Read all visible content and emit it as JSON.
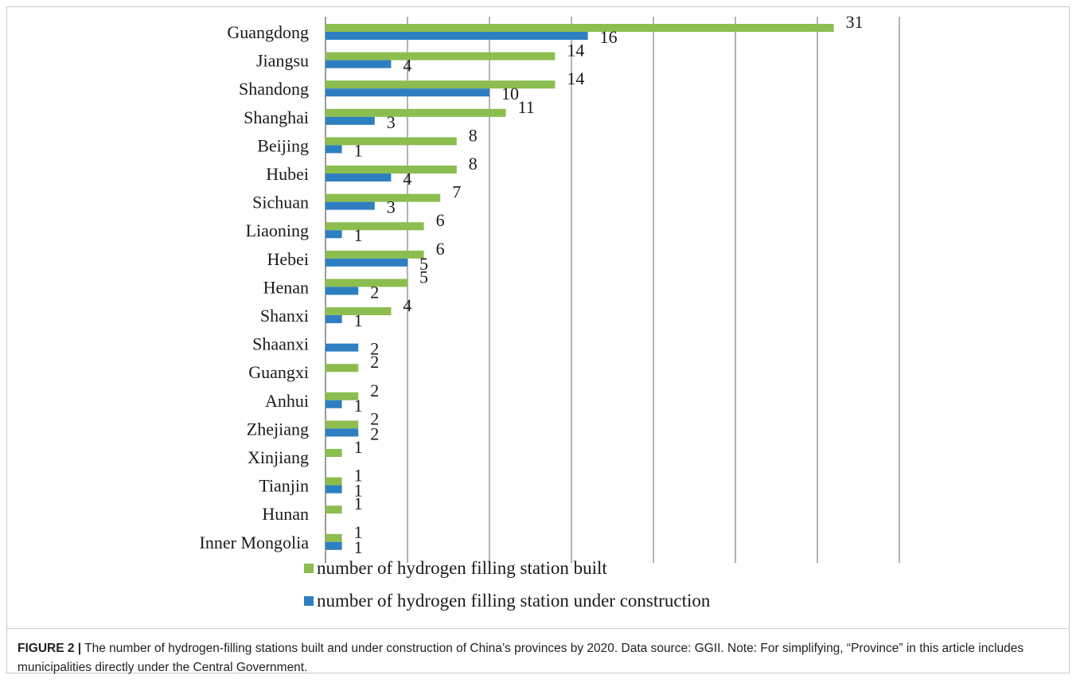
{
  "chart_data": {
    "type": "bar",
    "orientation": "horizontal",
    "categories": [
      "Guangdong",
      "Jiangsu",
      "Shandong",
      "Shanghai",
      "Beijing",
      "Hubei",
      "Sichuan",
      "Liaoning",
      "Hebei",
      "Henan",
      "Shanxi",
      "Shaanxi",
      "Guangxi",
      "Anhui",
      "Zhejiang",
      "Xinjiang",
      "Tianjin",
      "Hunan",
      "Inner Mongolia"
    ],
    "series": [
      {
        "name": "number of  hydrogen filling station built",
        "color": "#8cbd4f",
        "values": [
          31,
          14,
          14,
          11,
          8,
          8,
          7,
          6,
          6,
          5,
          4,
          null,
          2,
          2,
          2,
          1,
          1,
          1,
          1
        ]
      },
      {
        "name": "number of  hydrogen filling station  under construction",
        "color": "#2e7fc2",
        "values": [
          16,
          4,
          10,
          3,
          1,
          4,
          3,
          1,
          5,
          2,
          1,
          2,
          null,
          1,
          2,
          null,
          1,
          null,
          1
        ]
      }
    ],
    "xlim": [
      0,
      35
    ],
    "grid": "vertical",
    "legend_position": "bottom"
  },
  "caption": {
    "label": "FIGURE 2 |",
    "text": " The number of hydrogen-filling stations built and under construction of China’s provinces by 2020. Data source: GGII. Note: For simplifying, “Province” in this article includes municipalities directly under the Central Government."
  }
}
